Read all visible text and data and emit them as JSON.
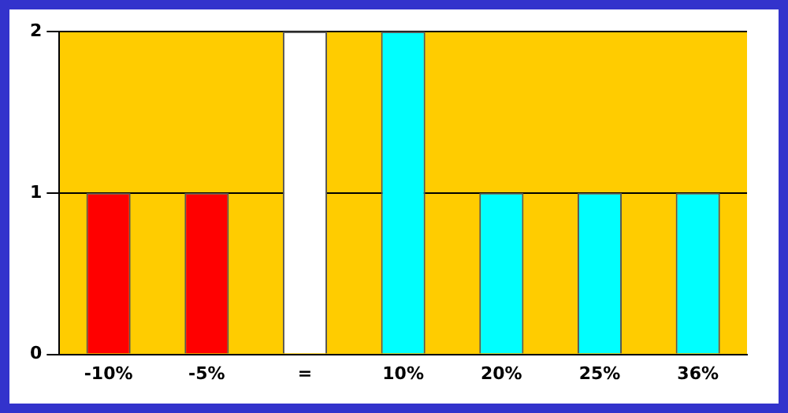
{
  "chart_data": {
    "type": "bar",
    "categories": [
      "-10%",
      "-5%",
      "=",
      "10%",
      "20%",
      "25%",
      "36%"
    ],
    "values": [
      1,
      1,
      2,
      2,
      1,
      1,
      1
    ],
    "colors": [
      "#ff0000",
      "#ff0000",
      "#ffffff",
      "#00ffff",
      "#00ffff",
      "#00ffff",
      "#00ffff"
    ],
    "ylim": [
      0,
      2
    ],
    "yticks": [
      0,
      1,
      2
    ],
    "grid": "y",
    "legend": false
  }
}
